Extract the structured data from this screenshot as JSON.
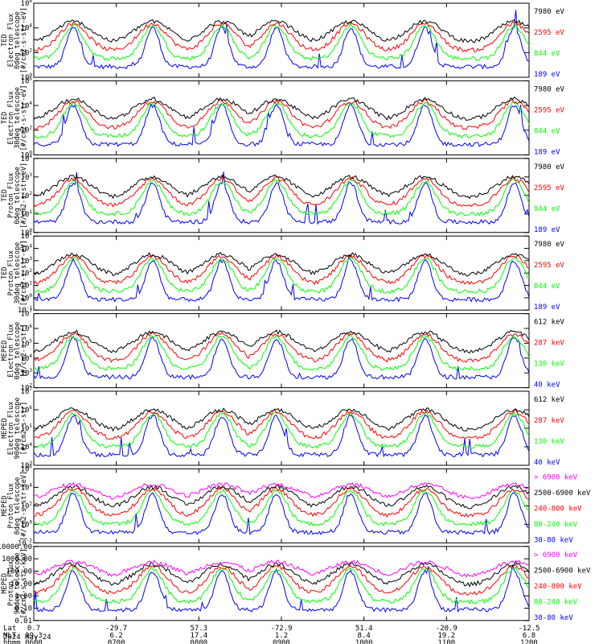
{
  "date_label": "2024 May 24",
  "footer_rows": [
    {
      "label": "Lat",
      "values": [
        "0.7",
        "-29.7",
        "57.3",
        "-72.9",
        "51.4",
        "-20.9",
        "-12.5"
      ]
    },
    {
      "label": "MLT",
      "values": [
        "19.3",
        "6.2",
        "17.4",
        "1.2",
        "8.4",
        "19.2",
        "6.8"
      ]
    },
    {
      "label": "hhmm",
      "values": [
        "0600",
        "0700",
        "0800",
        "0900",
        "1000",
        "1100",
        "1200"
      ]
    }
  ],
  "colors": {
    "black": "#000000",
    "red": "#ff0000",
    "green": "#00ff00",
    "blue": "#0000ff",
    "magenta": "#ff00ff"
  },
  "chart_data": [
    {
      "type": "line",
      "ylabel": [
        "TED",
        "Electron Flux",
        "0deg telescope",
        "[#/cm2-s-str-eV]"
      ],
      "yscale": "log",
      "yticks": [
        "10^6",
        "10^4",
        "10^2",
        "10^0"
      ],
      "legend": [
        {
          "name": "7980 eV",
          "color": "black"
        },
        {
          "name": "2595 eV",
          "color": "red"
        },
        {
          "name": "844 eV",
          "color": "green"
        },
        {
          "name": "189 eV",
          "color": "blue"
        }
      ]
    },
    {
      "type": "line",
      "ylabel": [
        "TED",
        "Electron Flux",
        "30deg telescope",
        "[#/cm2-s-str-eV]"
      ],
      "yscale": "log",
      "yticks": [
        "10^6",
        "10^4",
        "10^2",
        "10^0"
      ],
      "legend": [
        {
          "name": "7980 eV",
          "color": "black"
        },
        {
          "name": "2595 eV",
          "color": "red"
        },
        {
          "name": "844 eV",
          "color": "green"
        },
        {
          "name": "189 eV",
          "color": "blue"
        }
      ]
    },
    {
      "type": "line",
      "ylabel": [
        "TED",
        "Proton Flux",
        "0deg telescope",
        "[#/cm2-s-str-eV]"
      ],
      "yscale": "log",
      "yticks": [
        "10^4",
        "10^3",
        "10^2",
        "10^1",
        "10^0"
      ],
      "legend": [
        {
          "name": "7980 eV",
          "color": "black"
        },
        {
          "name": "2595 eV",
          "color": "red"
        },
        {
          "name": "844 eV",
          "color": "green"
        },
        {
          "name": "189 eV",
          "color": "blue"
        }
      ]
    },
    {
      "type": "line",
      "ylabel": [
        "TED",
        "Proton Flux",
        "30deg telescope",
        "[#/cm2-s-str-eV]"
      ],
      "yscale": "log",
      "yticks": [
        "10^5",
        "10^4",
        "10^3",
        "10^2",
        "10^1",
        "10^0",
        "10^-1"
      ],
      "legend": [
        {
          "name": "7980 eV",
          "color": "black"
        },
        {
          "name": "2595 eV",
          "color": "red"
        },
        {
          "name": "844 eV",
          "color": "green"
        },
        {
          "name": "189 eV",
          "color": "blue"
        }
      ]
    },
    {
      "type": "line",
      "ylabel": [
        "MEPED",
        "Electron Flux",
        "0deg telescope",
        "[#/cm2-s-str]"
      ],
      "yscale": "log",
      "yticks": [
        "10^7",
        "10^6",
        "10^5",
        "10^4",
        "10^3",
        "10^2"
      ],
      "legend": [
        {
          "name": "612 keV",
          "color": "black"
        },
        {
          "name": "287 keV",
          "color": "red"
        },
        {
          "name": "130 keV",
          "color": "green"
        },
        {
          "name": "40 keV",
          "color": "blue"
        }
      ]
    },
    {
      "type": "line",
      "ylabel": [
        "MEPED",
        "Electron Flux",
        "90deg telescope",
        "[#/cm2-s-str]"
      ],
      "yscale": "log",
      "yticks": [
        "10^7",
        "10^6",
        "10^5",
        "10^4",
        "10^3"
      ],
      "legend": [
        {
          "name": "612 keV",
          "color": "black"
        },
        {
          "name": "287 keV",
          "color": "red"
        },
        {
          "name": "130 keV",
          "color": "green"
        },
        {
          "name": "40 keV",
          "color": "blue"
        }
      ]
    },
    {
      "type": "line",
      "ylabel": [
        "MEPED",
        "Proton Flux",
        "0deg telescope",
        "[#/cm2-s-str-keV]"
      ],
      "yscale": "log",
      "yticks": [
        "10^6",
        "10^4",
        "10^2",
        "10^0",
        "10^-2"
      ],
      "legend": [
        {
          "name": "> 6900 keV",
          "color": "magenta"
        },
        {
          "name": "2500-6900 keV",
          "color": "black"
        },
        {
          "name": "240-800 keV",
          "color": "red"
        },
        {
          "name": "80-240 keV",
          "color": "green"
        },
        {
          "name": "30-80 keV",
          "color": "blue"
        }
      ]
    },
    {
      "type": "line",
      "ylabel": [
        "MEPED",
        "Proton Flux",
        "90deg telescope",
        "[#/cm2-s-str-keV]"
      ],
      "yscale": "log",
      "yticks": [
        "10000.00",
        "1000.00",
        "100.00",
        "10.00",
        "1.00",
        "0.10",
        "0.01"
      ],
      "legend": [
        {
          "name": "> 6900 keV",
          "color": "magenta"
        },
        {
          "name": "2500-6900 keV",
          "color": "black"
        },
        {
          "name": "240-800 keV",
          "color": "red"
        },
        {
          "name": "80-240 keV",
          "color": "green"
        },
        {
          "name": "30-80 keV",
          "color": "blue"
        }
      ]
    }
  ]
}
